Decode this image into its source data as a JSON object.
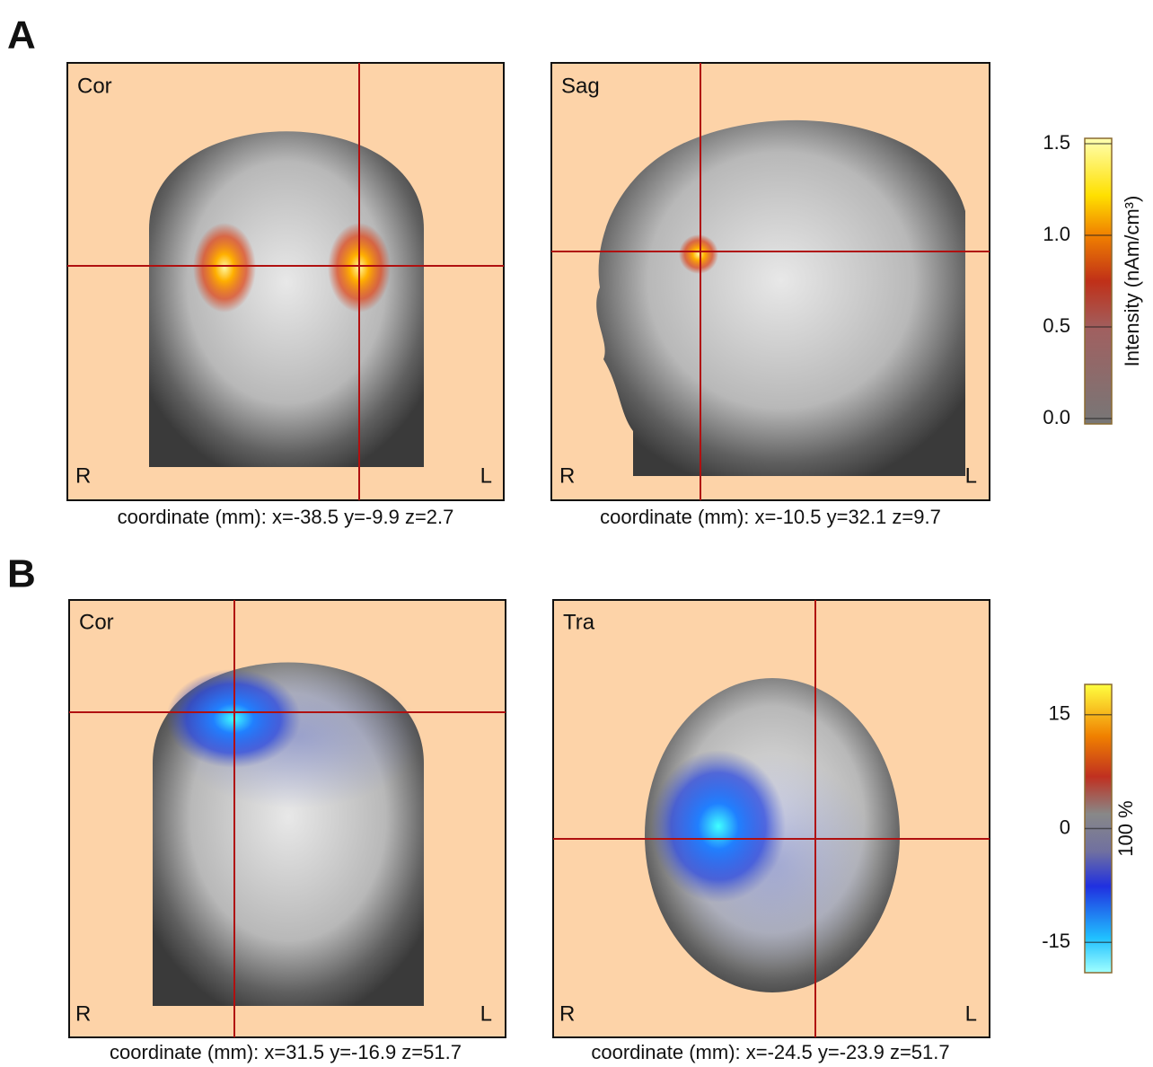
{
  "panels": [
    {
      "label": "A",
      "views": [
        {
          "name": "Cor",
          "left": "R",
          "right": "L",
          "coordinate": "coordinate (mm): x=-38.5 y=-9.9 z=2.7"
        },
        {
          "name": "Sag",
          "left": "R",
          "right": "L",
          "coordinate": "coordinate (mm): x=-10.5 y=32.1 z=9.7"
        }
      ],
      "colorbar": {
        "label": "Intensity (nAm/cm³)",
        "range": [
          0,
          1.5
        ],
        "ticks": [
          {
            "value": 0,
            "label": "0.0"
          },
          0.5,
          {
            "value": 1,
            "label": "1.0"
          },
          1.5
        ]
      }
    },
    {
      "label": "B",
      "views": [
        {
          "name": "Cor",
          "left": "R",
          "right": "L",
          "coordinate": "coordinate (mm): x=31.5 y=-16.9 z=51.7"
        },
        {
          "name": "Tra",
          "left": "R",
          "right": "L",
          "coordinate": "coordinate (mm): x=-24.5 y=-23.9 z=51.7"
        }
      ],
      "colorbar": {
        "label": "100 %",
        "range": [
          -19,
          19
        ],
        "ticks": [
          -15,
          0,
          15
        ]
      }
    }
  ]
}
